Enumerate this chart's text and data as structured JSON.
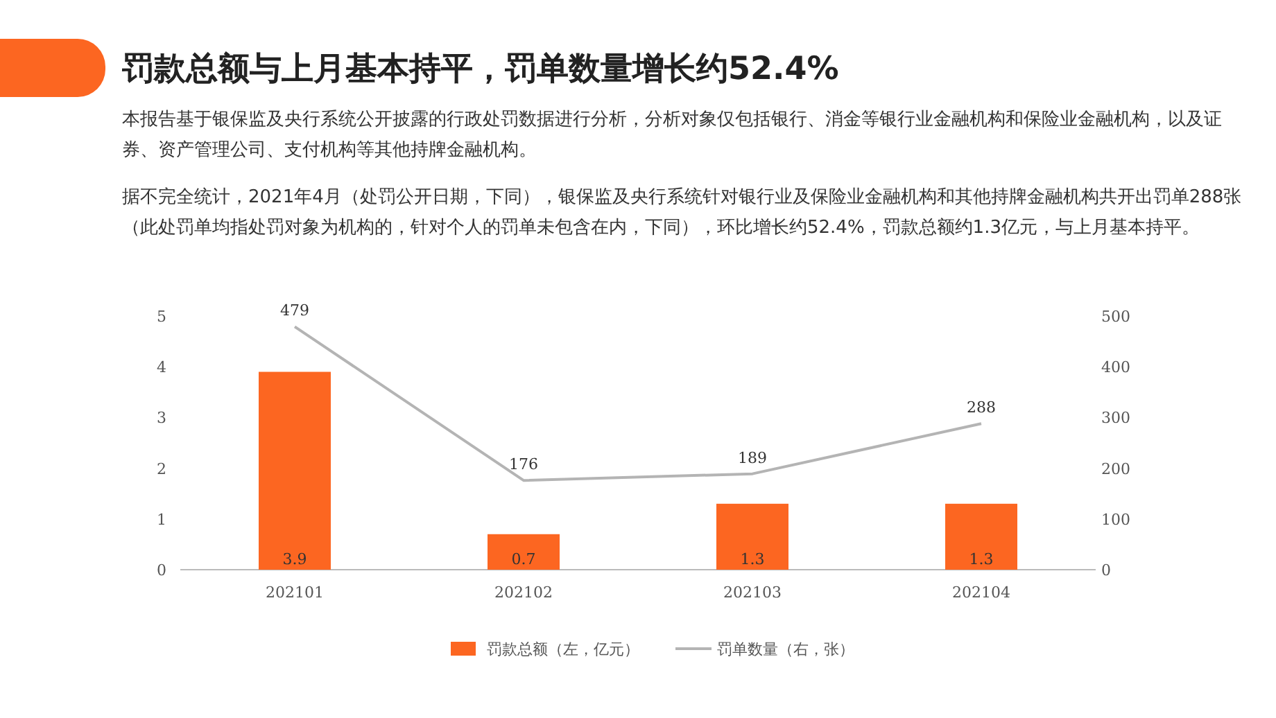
{
  "chart_data": {
    "type": "bar",
    "title": "罚款总额与上月基本持平，罚单数量增长约52.4%",
    "annotations": [
      "本报告基于银保监及央行系统公开披露的行政处罚数据进行分析，分析对象仅包括银行、消金等银行业金融机构和保险业金融机构，以及证券、资产管理公司、支付机构等其他持牌金融机构。",
      "据不完全统计，2021年4月（处罚公开日期，下同），银保监及央行系统针对银行业及保险业金融机构和其他持牌金融机构共开出罚单288张（此处罚单均指处罚对象为机构的，针对个人的罚单未包含在内，下同），环比增长约52.4%，罚款总额约1.3亿元，与上月基本持平。"
    ],
    "categories": [
      "202101",
      "202102",
      "202103",
      "202104"
    ],
    "series": [
      {
        "name": "罚款总额（左，亿元）",
        "color": "#fc6621",
        "values": [
          3.9,
          0.7,
          1.3,
          1.3
        ]
      },
      {
        "name": "罚单数量（右，张）",
        "type": "line",
        "axis": "y2",
        "color": "#b4b4b4",
        "values": [
          479,
          176,
          189,
          288
        ]
      }
    ],
    "ylim": [
      0,
      5
    ],
    "yticks": [
      0,
      1,
      2,
      3,
      4,
      5
    ],
    "y2lim": [
      0,
      500
    ],
    "y2ticks": [
      0,
      100,
      200,
      300,
      400,
      500
    ],
    "data_labels": true,
    "legend": "bottom",
    "grid": false,
    "marker": "none"
  }
}
